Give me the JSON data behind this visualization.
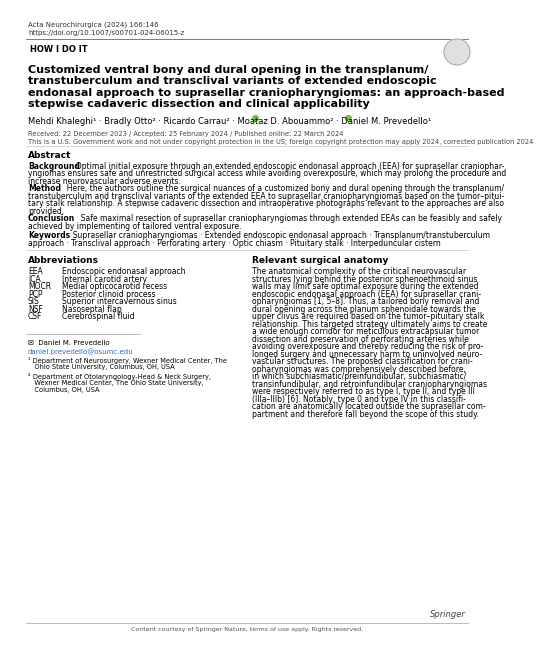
{
  "journal_line1": "Acta Neurochirurgica (2024) 166:146",
  "journal_line2": "https://doi.org/10.1007/s00701-024-06015-z",
  "section_label": "HOW I DO IT",
  "title_lines": [
    "Customized ventral bony and dural opening in the transplanum/",
    "transtuberculum and transclival variants of extended endoscopic",
    "endonasal approach to suprasellar craniopharyngiomas: an approach-based",
    "stepwise cadaveric dissection and clinical applicability"
  ],
  "authors": "Mehdi Khaleghi¹ · Bradly Otto² · Ricardo Carrau² · Moataz D. Abouammo² · Daniel M. Prevedello¹",
  "received": "Received: 22 December 2023 / Accepted: 25 February 2024 / Published online: 22 March 2024",
  "copyright": "This is a U.S. Government work and not under copyright protection in the US; foreign copyright protection may apply 2024, corrected publication 2024",
  "abstract_title": "Abstract",
  "bg_lines": [
    [
      "Background",
      "  Optimal initial exposure through an extended endoscopic endonasal approach (EEA) for suprasellar craniophar-"
    ],
    [
      "",
      "yngiomas ensures safe and unrestricted surgical access while avoiding overexposure, which may prolong the procedure and"
    ],
    [
      "",
      "increase neurovascular adverse events."
    ]
  ],
  "method_lines": [
    [
      "Method",
      "  Here, the authors outline the surgical nuances of a customized bony and dural opening through the transplanum/"
    ],
    [
      "",
      "transtuberculum and transclival variants of the extended EEA to suprasellar craniopharyngiomas based on the tumor–pitui-"
    ],
    [
      "",
      "tary stalk relationship. A stepwise cadaveric dissection and intraoperative photographs relevant to the approaches are also"
    ],
    [
      "",
      "provided."
    ]
  ],
  "conc_lines": [
    [
      "Conclusion",
      "  Safe maximal resection of suprasellar craniopharyngiomas through extended EEAs can be feasibly and safely"
    ],
    [
      "",
      "achieved by implementing of tailored ventral exposure."
    ]
  ],
  "kw_lines": [
    [
      "Keywords",
      "  Suprasellar craniopharyngiomas · Extended endoscopic endonasal approach · Transplanum/transtuberculum"
    ],
    [
      "",
      "approach · Transclival approach · Perforating artery · Optic chiasm · Pituitary stalk · Interpeduncular cistern"
    ]
  ],
  "abbrev_title": "Abbreviations",
  "abbrevs": [
    [
      "EEA",
      "Endoscopic endonasal approach"
    ],
    [
      "ICA",
      "Internal carotid artery"
    ],
    [
      "MOCR",
      "Medial opticocarotid recess"
    ],
    [
      "PCP",
      "Posterior clinoid process"
    ],
    [
      "SIS",
      "Superior intercavernous sinus"
    ],
    [
      "NSF",
      "Nasoseptal flap"
    ],
    [
      "CSF",
      "Cerebrospinal fluid"
    ]
  ],
  "relevant_title": "Relevant surgical anatomy",
  "rel_lines": [
    "The anatomical complexity of the critical neurovascular",
    "structures lying behind the posterior sphenoethmoid sinus",
    "walls may limit safe optimal exposure during the extended",
    "endoscopic endonasal approach (EEA) for suprasellar crani-",
    "opharyngiomas [1, 5–8]. Thus, a tailored bony removal and",
    "dural opening across the planum sphenoidale towards the",
    "upper clivus are required based on the tumor–pituitary stalk",
    "relationship. This targeted strategy ultimately aims to create",
    "a wide enough corridor for meticulous extracapsular tumor",
    "dissection and preservation of perforating arteries while",
    "avoiding overexposure and thereby reducing the risk of pro-",
    "longed surgery and unnecessary harm to uninvolved neuro-",
    "vascular structures. The proposed classification for crani-",
    "opharyngiomas was comprehensively described before,",
    "in which subchiasmatic/preinfundibular, subchiasmatic/",
    "transinfundibular, and retroinfundibular craniopharyngiomas",
    "were respectively referred to as type I, type II, and type III",
    "(IIIa–IIIb) [6]. Notably, type 0 and type IV in this classifi-",
    "cation are anatomically located outside the suprasellar com-",
    "partment and therefore fall beyond the scope of this study."
  ],
  "footnote_email_label": "✉  Daniel M. Prevedello",
  "footnote_email": "daniel.prevedello@osumc.edu",
  "footnote1_lines": [
    "¹ Department of Neurosurgery, Wexner Medical Center, The",
    "   Ohio State University, Columbus, OH, USA"
  ],
  "footnote2_lines": [
    "² Department of Otolaryngology-Head & Neck Surgery,",
    "   Wexner Medical Center, The Ohio State University,",
    "   Columbus, OH, USA"
  ],
  "footer": "Content courtesy of Springer Nature, terms of use apply. Rights reserved.",
  "springer_text": "Springer",
  "bg_color": "#ffffff",
  "section_bg": "#c8c8c8",
  "header_line_color": "#888888",
  "text_color": "#000000"
}
